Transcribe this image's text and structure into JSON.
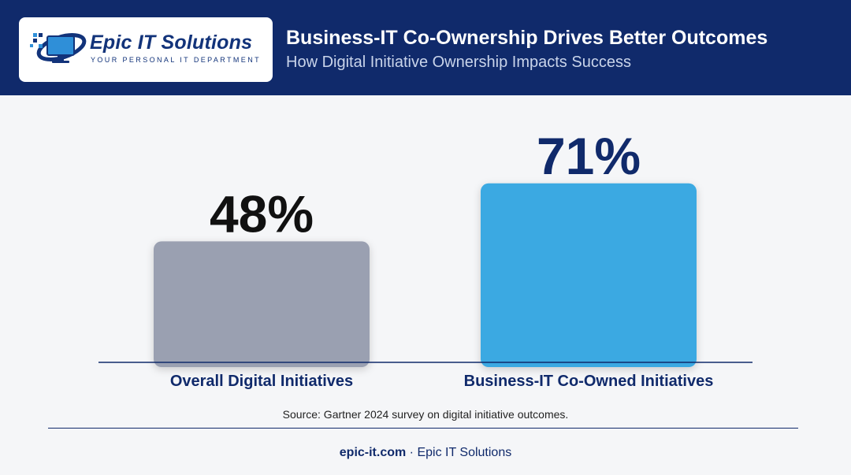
{
  "header": {
    "brand_name": "Epic IT Solutions",
    "brand_tagline": "YOUR PERSONAL IT DEPARTMENT",
    "title": "Business-IT Co-Ownership Drives Better Outcomes",
    "subtitle": "How Digital Initiative Ownership Impacts Success"
  },
  "chart_data": {
    "type": "bar",
    "title": "Business-IT Co-Ownership Drives Better Outcomes",
    "subtitle": "How Digital Initiative Ownership Impacts Success",
    "categories": [
      "Overall Digital Initiatives",
      "Business-IT Co-Owned Initiatives"
    ],
    "values": [
      48,
      71
    ],
    "data_labels": [
      "48%",
      "71%"
    ],
    "colors": [
      "#9aa0b1",
      "#3aa9e2"
    ],
    "label_colors": [
      "#111111",
      "#102a6b"
    ],
    "ylim": [
      0,
      100
    ],
    "grid": false,
    "legend": "none",
    "xlabel": "",
    "ylabel": ""
  },
  "source": "Source: Gartner 2024 survey on digital initiative outcomes.",
  "footer": {
    "url": "epic-it.com",
    "separator": " · ",
    "company": "Epic IT Solutions"
  }
}
